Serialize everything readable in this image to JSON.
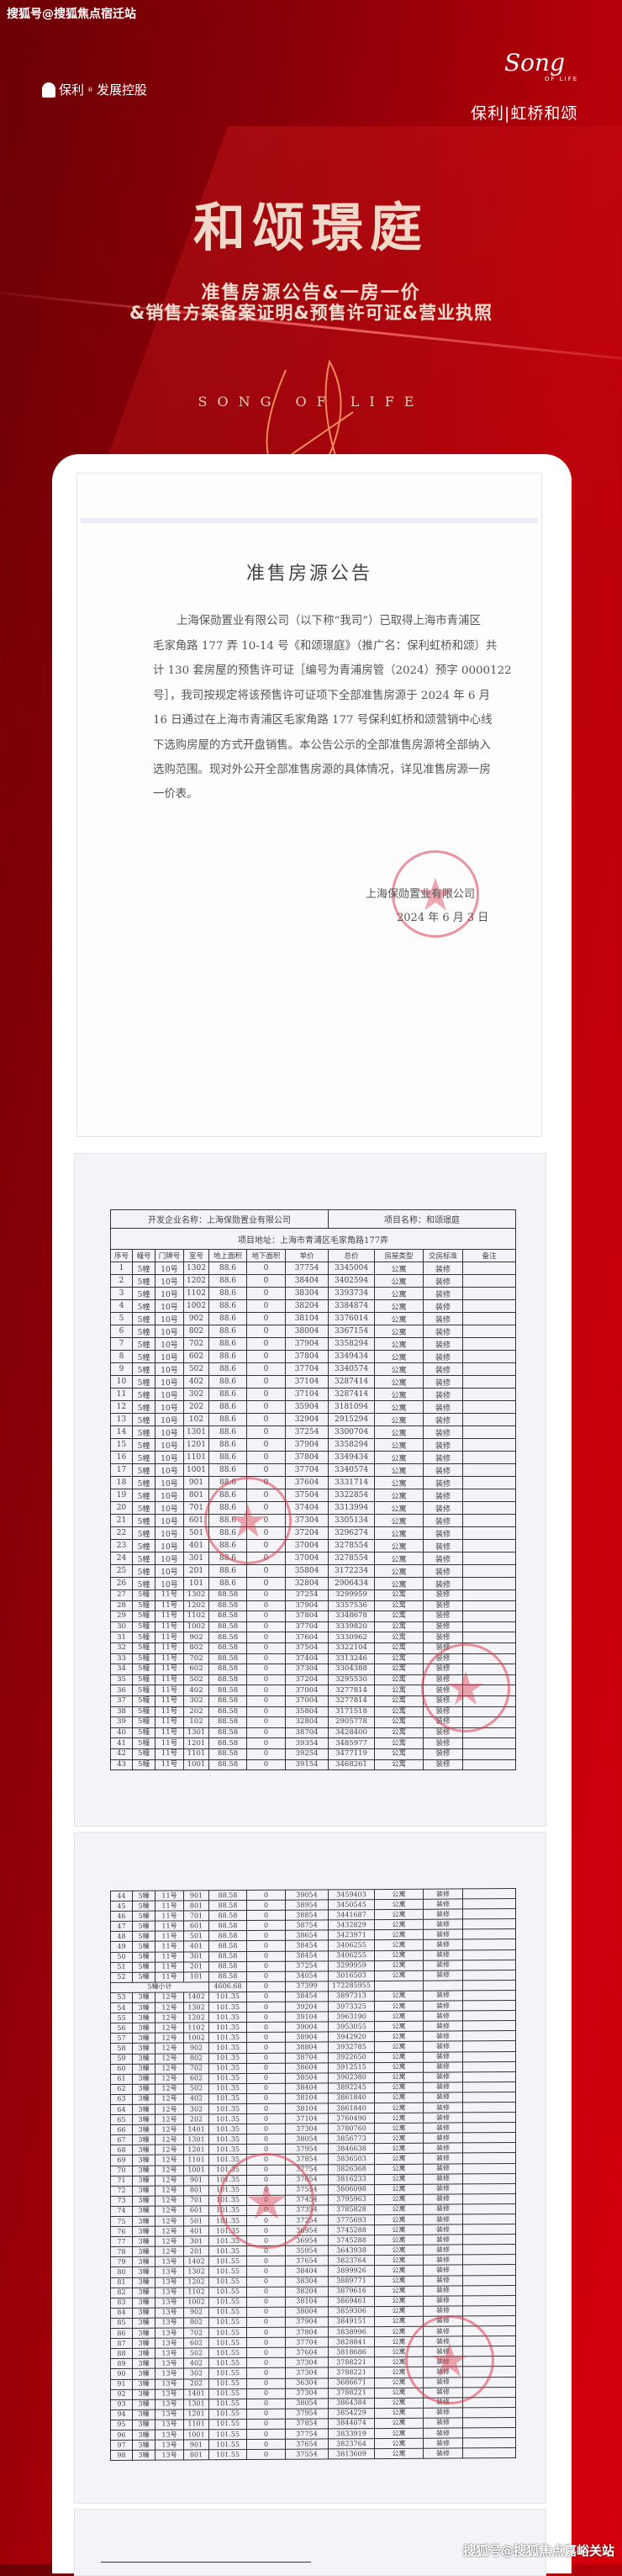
{
  "watermark_top": "搜狐号@搜狐焦点宿迁站",
  "watermark_bottom": "搜狐号@搜狐焦点嘉峪关站",
  "logo_left": {
    "brand": "保利",
    "suffix": "发展控股"
  },
  "logo_right": {
    "script": "Song",
    "of_life": "OF LIFE",
    "name": "保利|虹桥和颂"
  },
  "hero": {
    "title": "和颂璟庭",
    "subtitle1": "准售房源公告&一房一价",
    "subtitle2": "&销售方案备案证明&预售许可证&营业执照",
    "tagline": "SONG OF LIFE"
  },
  "colors": {
    "accent": "#c8000a",
    "dark_red": "#6a0005",
    "title_gold": "#f2d8c8",
    "stamp": "#dc3c50"
  },
  "notice": {
    "title": "准售房源公告",
    "lines": [
      "上海保勋置业有限公司（以下称“我司”）已取得上海市青浦区",
      "毛家角路 177 弄 10-14 号《和颂璟庭》（推广名：保利虹桥和颂）共",
      "计 130 套房屋的预售许可证［编号为青浦房管（2024）预字 0000122",
      "号］，我司按规定将该预售许可证项下全部准售房源于 2024 年 6 月",
      "16 日通过在上海市青浦区毛家角路 177 号保利虹桥和颂营销中心线",
      "下选购房屋的方式开盘销售。本公告公示的全部准售房源将全部纳入",
      "选购范围。现对外公开全部准售房源的具体情况，详见准售房源一房",
      "一价表。"
    ],
    "signature": "上海保勋置业有限公司",
    "date": "2024 年 6 月 3 日",
    "stamp_text": "上海保勋置业有限公司"
  },
  "price_table": {
    "developer": "开发企业名称：上海保勋置业有限公司",
    "project": "项目名称：和颂璟庭",
    "address": "项目地址：上海市青浦区毛家角路177弄",
    "columns": [
      "序号",
      "幢号",
      "门牌号",
      "室号",
      "地上面积",
      "地下面积",
      "单价",
      "总价",
      "房屋类型",
      "交房标准",
      "备注"
    ],
    "rows_page1": [
      [
        "1",
        "5幢",
        "10号",
        "1302",
        "88.6",
        "0",
        "37754",
        "3345004",
        "公寓",
        "装修",
        ""
      ],
      [
        "2",
        "5幢",
        "10号",
        "1202",
        "88.6",
        "0",
        "38404",
        "3402594",
        "公寓",
        "装修",
        ""
      ],
      [
        "3",
        "5幢",
        "10号",
        "1102",
        "88.6",
        "0",
        "38304",
        "3393734",
        "公寓",
        "装修",
        ""
      ],
      [
        "4",
        "5幢",
        "10号",
        "1002",
        "88.6",
        "0",
        "38204",
        "3384874",
        "公寓",
        "装修",
        ""
      ],
      [
        "5",
        "5幢",
        "10号",
        "902",
        "88.6",
        "0",
        "38104",
        "3376014",
        "公寓",
        "装修",
        ""
      ],
      [
        "6",
        "5幢",
        "10号",
        "802",
        "88.6",
        "0",
        "38004",
        "3367154",
        "公寓",
        "装修",
        ""
      ],
      [
        "7",
        "5幢",
        "10号",
        "702",
        "88.6",
        "0",
        "37904",
        "3358294",
        "公寓",
        "装修",
        ""
      ],
      [
        "8",
        "5幢",
        "10号",
        "602",
        "88.6",
        "0",
        "37804",
        "3349434",
        "公寓",
        "装修",
        ""
      ],
      [
        "9",
        "5幢",
        "10号",
        "502",
        "88.6",
        "0",
        "37704",
        "3340574",
        "公寓",
        "装修",
        ""
      ],
      [
        "10",
        "5幢",
        "10号",
        "402",
        "88.6",
        "0",
        "37104",
        "3287414",
        "公寓",
        "装修",
        ""
      ],
      [
        "11",
        "5幢",
        "10号",
        "302",
        "88.6",
        "0",
        "37104",
        "3287414",
        "公寓",
        "装修",
        ""
      ],
      [
        "12",
        "5幢",
        "10号",
        "202",
        "88.6",
        "0",
        "35904",
        "3181094",
        "公寓",
        "装修",
        ""
      ],
      [
        "13",
        "5幢",
        "10号",
        "102",
        "88.6",
        "0",
        "32904",
        "2915294",
        "公寓",
        "装修",
        ""
      ],
      [
        "14",
        "5幢",
        "10号",
        "1301",
        "88.6",
        "0",
        "37254",
        "3300704",
        "公寓",
        "装修",
        ""
      ],
      [
        "15",
        "5幢",
        "10号",
        "1201",
        "88.6",
        "0",
        "37904",
        "3358294",
        "公寓",
        "装修",
        ""
      ],
      [
        "16",
        "5幢",
        "10号",
        "1101",
        "88.6",
        "0",
        "37804",
        "3349434",
        "公寓",
        "装修",
        ""
      ],
      [
        "17",
        "5幢",
        "10号",
        "1001",
        "88.6",
        "0",
        "37704",
        "3340574",
        "公寓",
        "装修",
        ""
      ],
      [
        "18",
        "5幢",
        "10号",
        "901",
        "88.6",
        "0",
        "37604",
        "3331714",
        "公寓",
        "装修",
        ""
      ],
      [
        "19",
        "5幢",
        "10号",
        "801",
        "88.6",
        "0",
        "37504",
        "3322854",
        "公寓",
        "装修",
        ""
      ],
      [
        "20",
        "5幢",
        "10号",
        "701",
        "88.6",
        "0",
        "37404",
        "3313994",
        "公寓",
        "装修",
        ""
      ],
      [
        "21",
        "5幢",
        "10号",
        "601",
        "88.6",
        "0",
        "37304",
        "3305134",
        "公寓",
        "装修",
        ""
      ],
      [
        "22",
        "5幢",
        "10号",
        "501",
        "88.6",
        "0",
        "37204",
        "3296274",
        "公寓",
        "装修",
        ""
      ],
      [
        "23",
        "5幢",
        "10号",
        "401",
        "88.6",
        "0",
        "37004",
        "3278554",
        "公寓",
        "装修",
        ""
      ],
      [
        "24",
        "5幢",
        "10号",
        "301",
        "88.6",
        "0",
        "37004",
        "3278554",
        "公寓",
        "装修",
        ""
      ],
      [
        "25",
        "5幢",
        "10号",
        "201",
        "88.6",
        "0",
        "35804",
        "3172234",
        "公寓",
        "装修",
        ""
      ],
      [
        "26",
        "5幢",
        "10号",
        "101",
        "88.6",
        "0",
        "32804",
        "2906434",
        "公寓",
        "装修",
        ""
      ],
      [
        "27",
        "5幢",
        "11号",
        "1302",
        "88.58",
        "0",
        "37254",
        "3299959",
        "公寓",
        "装修",
        ""
      ],
      [
        "28",
        "5幢",
        "11号",
        "1202",
        "88.58",
        "0",
        "37904",
        "3357536",
        "公寓",
        "装修",
        ""
      ],
      [
        "29",
        "5幢",
        "11号",
        "1102",
        "88.58",
        "0",
        "37804",
        "3348678",
        "公寓",
        "装修",
        ""
      ],
      [
        "30",
        "5幢",
        "11号",
        "1002",
        "88.58",
        "0",
        "37704",
        "3339820",
        "公寓",
        "装修",
        ""
      ],
      [
        "31",
        "5幢",
        "11号",
        "902",
        "88.58",
        "0",
        "37604",
        "3330962",
        "公寓",
        "装修",
        ""
      ],
      [
        "32",
        "5幢",
        "11号",
        "802",
        "88.58",
        "0",
        "37504",
        "3322104",
        "公寓",
        "装修",
        ""
      ],
      [
        "33",
        "5幢",
        "11号",
        "702",
        "88.58",
        "0",
        "37404",
        "3313246",
        "公寓",
        "装修",
        ""
      ],
      [
        "34",
        "5幢",
        "11号",
        "602",
        "88.58",
        "0",
        "37304",
        "3304388",
        "公寓",
        "装修",
        ""
      ],
      [
        "35",
        "5幢",
        "11号",
        "502",
        "88.58",
        "0",
        "37204",
        "3295530",
        "公寓",
        "装修",
        ""
      ],
      [
        "36",
        "5幢",
        "11号",
        "402",
        "88.58",
        "0",
        "37004",
        "3277814",
        "公寓",
        "装修",
        ""
      ],
      [
        "37",
        "5幢",
        "11号",
        "302",
        "88.58",
        "0",
        "37004",
        "3277814",
        "公寓",
        "装修",
        ""
      ],
      [
        "38",
        "5幢",
        "11号",
        "202",
        "88.58",
        "0",
        "35804",
        "3171518",
        "公寓",
        "装修",
        ""
      ],
      [
        "39",
        "5幢",
        "11号",
        "102",
        "88.58",
        "0",
        "32804",
        "2905778",
        "公寓",
        "装修",
        ""
      ],
      [
        "40",
        "5幢",
        "11号",
        "1301",
        "88.58",
        "0",
        "38704",
        "3428400",
        "公寓",
        "装修",
        ""
      ],
      [
        "41",
        "5幢",
        "11号",
        "1201",
        "88.58",
        "0",
        "39354",
        "3485977",
        "公寓",
        "装修",
        ""
      ],
      [
        "42",
        "5幢",
        "11号",
        "1101",
        "88.58",
        "0",
        "39254",
        "3477119",
        "公寓",
        "装修",
        ""
      ],
      [
        "43",
        "5幢",
        "11号",
        "1001",
        "88.58",
        "0",
        "39154",
        "3468261",
        "公寓",
        "装修",
        ""
      ]
    ],
    "rows_page2": [
      [
        "44",
        "5幢",
        "11号",
        "901",
        "88.58",
        "0",
        "39054",
        "3459403",
        "公寓",
        "装修",
        ""
      ],
      [
        "45",
        "5幢",
        "11号",
        "801",
        "88.58",
        "0",
        "38954",
        "3450545",
        "公寓",
        "装修",
        ""
      ],
      [
        "46",
        "5幢",
        "11号",
        "701",
        "88.58",
        "0",
        "38854",
        "3441687",
        "公寓",
        "装修",
        ""
      ],
      [
        "47",
        "5幢",
        "11号",
        "601",
        "88.58",
        "0",
        "38754",
        "3432829",
        "公寓",
        "装修",
        ""
      ],
      [
        "48",
        "5幢",
        "11号",
        "501",
        "88.58",
        "0",
        "38654",
        "3423971",
        "公寓",
        "装修",
        ""
      ],
      [
        "49",
        "5幢",
        "11号",
        "401",
        "88.58",
        "0",
        "38454",
        "3406255",
        "公寓",
        "装修",
        ""
      ],
      [
        "50",
        "5幢",
        "11号",
        "301",
        "88.58",
        "0",
        "38454",
        "3406255",
        "公寓",
        "装修",
        ""
      ],
      [
        "51",
        "5幢",
        "11号",
        "201",
        "88.58",
        "0",
        "37254",
        "3299959",
        "公寓",
        "装修",
        ""
      ],
      [
        "52",
        "5幢",
        "11号",
        "101",
        "88.58",
        "0",
        "34054",
        "3016503",
        "公寓",
        "装修",
        ""
      ],
      [
        "subtotal",
        "5幢小计",
        "4606.68",
        "0",
        "37399",
        "172285955"
      ],
      [
        "53",
        "3幢",
        "12号",
        "1402",
        "101.35",
        "0",
        "38454",
        "3897313",
        "公寓",
        "装修",
        ""
      ],
      [
        "54",
        "3幢",
        "12号",
        "1302",
        "101.35",
        "0",
        "39204",
        "3973325",
        "公寓",
        "装修",
        ""
      ],
      [
        "55",
        "3幢",
        "12号",
        "1202",
        "101.35",
        "0",
        "39104",
        "3963190",
        "公寓",
        "装修",
        ""
      ],
      [
        "56",
        "3幢",
        "12号",
        "1102",
        "101.35",
        "0",
        "39004",
        "3953055",
        "公寓",
        "装修",
        ""
      ],
      [
        "57",
        "3幢",
        "12号",
        "1002",
        "101.35",
        "0",
        "38904",
        "3942920",
        "公寓",
        "装修",
        ""
      ],
      [
        "58",
        "3幢",
        "12号",
        "902",
        "101.35",
        "0",
        "38804",
        "3932785",
        "公寓",
        "装修",
        ""
      ],
      [
        "59",
        "3幢",
        "12号",
        "802",
        "101.35",
        "0",
        "38704",
        "3922650",
        "公寓",
        "装修",
        ""
      ],
      [
        "60",
        "3幢",
        "12号",
        "702",
        "101.35",
        "0",
        "38604",
        "3912515",
        "公寓",
        "装修",
        ""
      ],
      [
        "61",
        "3幢",
        "12号",
        "602",
        "101.35",
        "0",
        "38504",
        "3902380",
        "公寓",
        "装修",
        ""
      ],
      [
        "62",
        "3幢",
        "12号",
        "502",
        "101.35",
        "0",
        "38404",
        "3892245",
        "公寓",
        "装修",
        ""
      ],
      [
        "63",
        "3幢",
        "12号",
        "402",
        "101.35",
        "0",
        "38104",
        "3861840",
        "公寓",
        "装修",
        ""
      ],
      [
        "64",
        "3幢",
        "12号",
        "302",
        "101.35",
        "0",
        "38104",
        "3861840",
        "公寓",
        "装修",
        ""
      ],
      [
        "65",
        "3幢",
        "12号",
        "202",
        "101.35",
        "0",
        "37104",
        "3760490",
        "公寓",
        "装修",
        ""
      ],
      [
        "66",
        "3幢",
        "12号",
        "1401",
        "101.35",
        "0",
        "37304",
        "3780760",
        "公寓",
        "装修",
        ""
      ],
      [
        "67",
        "3幢",
        "12号",
        "1301",
        "101.35",
        "0",
        "38054",
        "3856773",
        "公寓",
        "装修",
        ""
      ],
      [
        "68",
        "3幢",
        "12号",
        "1201",
        "101.35",
        "0",
        "37954",
        "3846638",
        "公寓",
        "装修",
        ""
      ],
      [
        "69",
        "3幢",
        "12号",
        "1101",
        "101.35",
        "0",
        "37854",
        "3836503",
        "公寓",
        "装修",
        ""
      ],
      [
        "70",
        "3幢",
        "12号",
        "1001",
        "101.35",
        "0",
        "37754",
        "3826368",
        "公寓",
        "装修",
        ""
      ],
      [
        "71",
        "3幢",
        "12号",
        "901",
        "101.35",
        "0",
        "37654",
        "3816233",
        "公寓",
        "装修",
        ""
      ],
      [
        "72",
        "3幢",
        "12号",
        "801",
        "101.35",
        "0",
        "37554",
        "3806098",
        "公寓",
        "装修",
        ""
      ],
      [
        "73",
        "3幢",
        "12号",
        "701",
        "101.35",
        "0",
        "37454",
        "3795963",
        "公寓",
        "装修",
        ""
      ],
      [
        "74",
        "3幢",
        "12号",
        "601",
        "101.35",
        "0",
        "37354",
        "3785828",
        "公寓",
        "装修",
        ""
      ],
      [
        "75",
        "3幢",
        "12号",
        "501",
        "101.35",
        "0",
        "37254",
        "3775693",
        "公寓",
        "装修",
        ""
      ],
      [
        "76",
        "3幢",
        "12号",
        "401",
        "101.35",
        "0",
        "36954",
        "3745288",
        "公寓",
        "装修",
        ""
      ],
      [
        "77",
        "3幢",
        "12号",
        "301",
        "101.35",
        "0",
        "36954",
        "3745288",
        "公寓",
        "装修",
        ""
      ],
      [
        "78",
        "3幢",
        "12号",
        "201",
        "101.35",
        "0",
        "35954",
        "3643938",
        "公寓",
        "装修",
        ""
      ],
      [
        "79",
        "3幢",
        "13号",
        "1402",
        "101.55",
        "0",
        "37654",
        "3823764",
        "公寓",
        "装修",
        ""
      ],
      [
        "80",
        "3幢",
        "13号",
        "1302",
        "101.55",
        "0",
        "38404",
        "3899926",
        "公寓",
        "装修",
        ""
      ],
      [
        "81",
        "3幢",
        "13号",
        "1202",
        "101.55",
        "0",
        "38304",
        "3889771",
        "公寓",
        "装修",
        ""
      ],
      [
        "82",
        "3幢",
        "13号",
        "1102",
        "101.55",
        "0",
        "38204",
        "3879616",
        "公寓",
        "装修",
        ""
      ],
      [
        "83",
        "3幢",
        "13号",
        "1002",
        "101.55",
        "0",
        "38104",
        "3869461",
        "公寓",
        "装修",
        ""
      ],
      [
        "84",
        "3幢",
        "13号",
        "902",
        "101.55",
        "0",
        "38004",
        "3859306",
        "公寓",
        "装修",
        ""
      ],
      [
        "85",
        "3幢",
        "13号",
        "802",
        "101.55",
        "0",
        "37904",
        "3849151",
        "公寓",
        "装修",
        ""
      ],
      [
        "86",
        "3幢",
        "13号",
        "702",
        "101.55",
        "0",
        "37804",
        "3838996",
        "公寓",
        "装修",
        ""
      ],
      [
        "87",
        "3幢",
        "13号",
        "602",
        "101.55",
        "0",
        "37704",
        "3828841",
        "公寓",
        "装修",
        ""
      ],
      [
        "88",
        "3幢",
        "13号",
        "502",
        "101.55",
        "0",
        "37604",
        "3818686",
        "公寓",
        "装修",
        ""
      ],
      [
        "89",
        "3幢",
        "13号",
        "402",
        "101.55",
        "0",
        "37304",
        "3788221",
        "公寓",
        "装修",
        ""
      ],
      [
        "90",
        "3幢",
        "13号",
        "302",
        "101.55",
        "0",
        "37304",
        "3788221",
        "公寓",
        "装修",
        ""
      ],
      [
        "91",
        "3幢",
        "13号",
        "202",
        "101.55",
        "0",
        "36304",
        "3686671",
        "公寓",
        "装修",
        ""
      ],
      [
        "92",
        "3幢",
        "13号",
        "1401",
        "101.55",
        "0",
        "37304",
        "3788221",
        "公寓",
        "装修",
        ""
      ],
      [
        "93",
        "3幢",
        "13号",
        "1301",
        "101.55",
        "0",
        "38054",
        "3864384",
        "公寓",
        "装修",
        ""
      ],
      [
        "94",
        "3幢",
        "13号",
        "1201",
        "101.55",
        "0",
        "37954",
        "3854229",
        "公寓",
        "装修",
        ""
      ],
      [
        "95",
        "3幢",
        "13号",
        "1101",
        "101.55",
        "0",
        "37854",
        "3844074",
        "公寓",
        "装修",
        ""
      ],
      [
        "96",
        "3幢",
        "13号",
        "1001",
        "101.55",
        "0",
        "37754",
        "3833919",
        "公寓",
        "装修",
        ""
      ],
      [
        "97",
        "3幢",
        "13号",
        "901",
        "101.55",
        "0",
        "37654",
        "3823764",
        "公寓",
        "装修",
        ""
      ],
      [
        "98",
        "3幢",
        "13号",
        "801",
        "101.55",
        "0",
        "37554",
        "3813609",
        "公寓",
        "装修",
        ""
      ]
    ]
  }
}
